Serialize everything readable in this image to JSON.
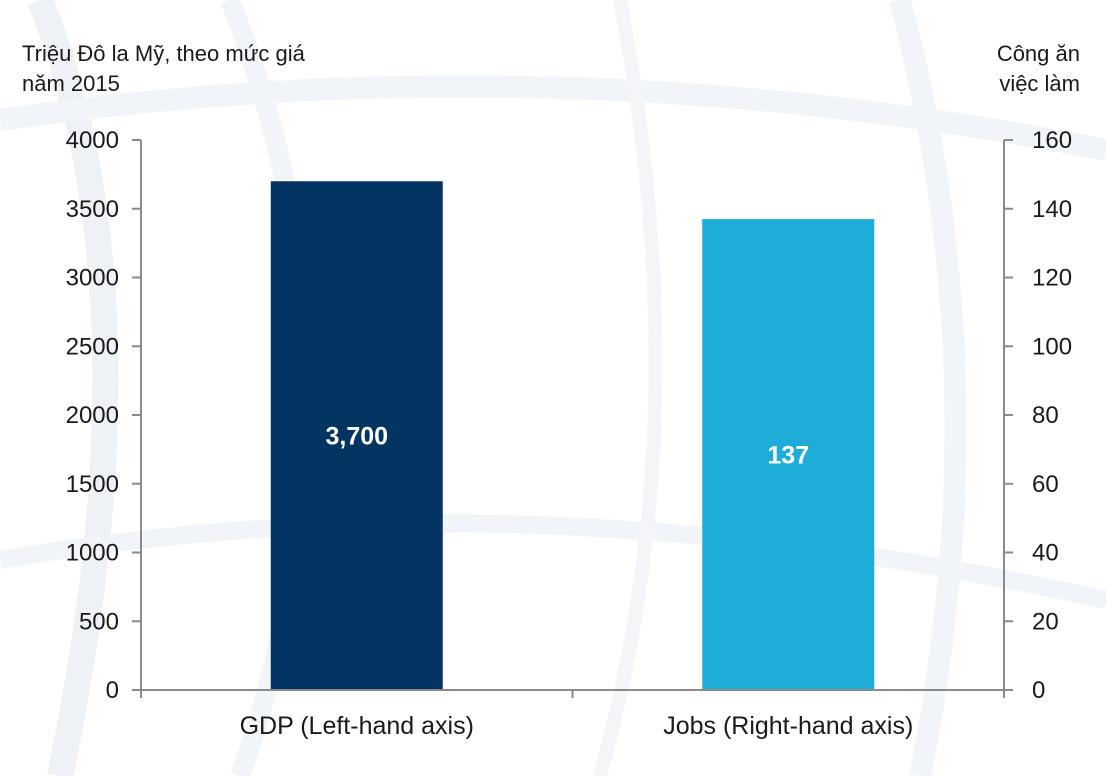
{
  "chart_data": {
    "type": "bar",
    "categories": [
      "GDP (Left-hand axis)",
      "Jobs (Right-hand axis)"
    ],
    "series": [
      {
        "axis": "left",
        "category": "GDP (Left-hand axis)",
        "value": 3700,
        "label": "3,700",
        "color": "#033462"
      },
      {
        "axis": "right",
        "category": "Jobs (Right-hand axis)",
        "value": 137,
        "label": "137",
        "color": "#1eadd9"
      }
    ],
    "y_left": {
      "title_lines": [
        "Triệu Đô la Mỹ, theo mức giá",
        "năm 2015"
      ],
      "ylim": [
        0,
        4000
      ],
      "ticks": [
        "0",
        "500",
        "1000",
        "1500",
        "2000",
        "2500",
        "3000",
        "3500",
        "4000"
      ]
    },
    "y_right": {
      "title_lines": [
        "Công ăn",
        "việc làm"
      ],
      "ylim": [
        0,
        160
      ],
      "ticks": [
        "0",
        "20",
        "40",
        "60",
        "80",
        "100",
        "120",
        "140",
        "160"
      ]
    },
    "grid": false,
    "legend": "none"
  },
  "colors": {
    "axis": "#8a8a8a",
    "background_pattern": "#eef1f6"
  }
}
